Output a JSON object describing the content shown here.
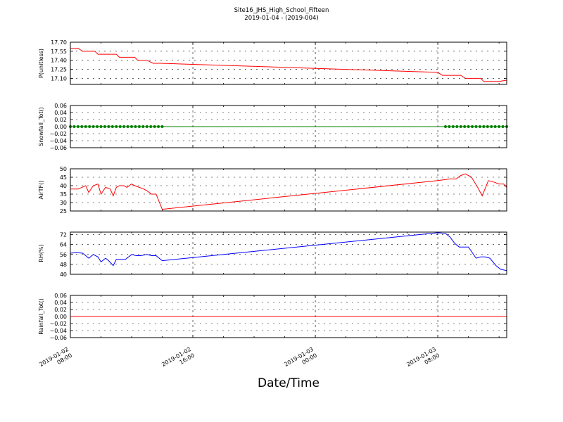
{
  "title": "Site16_JHS_High_School_Fifteen",
  "subtitle": "2019-01-04 - (2019-004)",
  "xlabel": "Date/Time",
  "x_ticks": [
    {
      "t": 0,
      "line1": "2019-01-02",
      "line2": "08:00"
    },
    {
      "t": 8,
      "line1": "2019-01-02",
      "line2": "16:00"
    },
    {
      "t": 16,
      "line1": "2019-01-03",
      "line2": "00:00"
    },
    {
      "t": 24,
      "line1": "2019-01-03",
      "line2": "08:00"
    }
  ],
  "colors": {
    "pressure": "#ff0000",
    "snowfall": "#008000",
    "airtemp": "#ff0000",
    "rh": "#0000ff",
    "rainfall": "#ff0000",
    "grid": "#000000"
  },
  "chart_data": [
    {
      "type": "line",
      "ylabel": "P(unitless)",
      "ylim": [
        17.0,
        17.7
      ],
      "y_ticks": [
        "17.70",
        "17.55",
        "17.40",
        "17.25",
        "17.10"
      ],
      "y_tick_values": [
        17.7,
        17.55,
        17.4,
        17.25,
        17.1
      ],
      "grid": true,
      "colorKey": "pressure",
      "x": [
        0,
        0.5,
        0.8,
        1.0,
        1.3,
        1.6,
        1.8,
        3.0,
        3.2,
        4.2,
        4.4,
        5.0,
        5.4,
        5.9,
        24.0,
        24.3,
        25.5,
        25.8,
        26.8,
        27.0,
        28.0,
        28.5
      ],
      "y": [
        17.6,
        17.6,
        17.55,
        17.55,
        17.55,
        17.55,
        17.5,
        17.5,
        17.45,
        17.45,
        17.4,
        17.4,
        17.35,
        17.35,
        17.2,
        17.15,
        17.15,
        17.1,
        17.1,
        17.05,
        17.05,
        17.07
      ]
    },
    {
      "type": "scatter",
      "ylabel": "Snowfall_Tot()",
      "ylim": [
        -0.06,
        0.06
      ],
      "y_ticks": [
        "0.06",
        "0.04",
        "0.02",
        "0.00",
        "−0.02",
        "−0.04",
        "−0.06"
      ],
      "y_tick_values": [
        0.06,
        0.04,
        0.02,
        0,
        -0.02,
        -0.04,
        -0.06
      ],
      "grid": true,
      "colorKey": "snowfall",
      "segments": [
        [
          0,
          6.0
        ],
        [
          24.5,
          28.5
        ]
      ],
      "step": 0.25,
      "value": 0
    },
    {
      "type": "line",
      "ylabel": "AirTF()",
      "ylim": [
        25,
        50
      ],
      "y_ticks": [
        "50",
        "45",
        "40",
        "35",
        "30",
        "25"
      ],
      "y_tick_values": [
        50,
        45,
        40,
        35,
        30,
        25
      ],
      "grid": true,
      "colorKey": "airtemp",
      "x": [
        0,
        0.5,
        1.0,
        1.2,
        1.5,
        1.8,
        2.0,
        2.3,
        2.6,
        2.8,
        3.0,
        3.2,
        3.5,
        3.7,
        4.0,
        4.2,
        4.5,
        4.8,
        5.0,
        5.3,
        5.6,
        6.0,
        24.0,
        24.8,
        25.2,
        25.5,
        25.8,
        26.2,
        26.6,
        26.9,
        27.3,
        27.7,
        28.0,
        28.3,
        28.5
      ],
      "y": [
        38,
        38,
        40,
        36,
        40,
        41,
        35,
        39,
        38,
        34,
        39,
        40,
        40,
        39,
        41,
        40,
        39,
        38,
        37,
        35,
        35,
        26,
        43,
        44,
        44,
        46,
        47,
        45,
        39,
        34,
        43,
        42,
        41,
        41,
        39
      ]
    },
    {
      "type": "line",
      "ylabel": "RH(%)",
      "ylim": [
        40,
        74
      ],
      "y_ticks": [
        "72",
        "64",
        "56",
        "48",
        "40"
      ],
      "y_tick_values": [
        72,
        64,
        56,
        48,
        40
      ],
      "grid": true,
      "colorKey": "rh",
      "x": [
        0,
        0.4,
        0.8,
        1.0,
        1.2,
        1.5,
        1.8,
        2.0,
        2.3,
        2.5,
        2.8,
        3.0,
        3.2,
        3.6,
        4.0,
        4.3,
        4.6,
        5.0,
        5.3,
        5.6,
        6.0,
        24.0,
        24.5,
        24.8,
        25.1,
        25.4,
        25.7,
        26.0,
        26.5,
        26.8,
        27.1,
        27.4,
        27.8,
        28.1,
        28.5
      ],
      "y": [
        57,
        57.5,
        57,
        55,
        53,
        56,
        54,
        50,
        53,
        51,
        47,
        52,
        52,
        52,
        56,
        55,
        55,
        56,
        55,
        55,
        51,
        73.5,
        73,
        70,
        65,
        62,
        62,
        62,
        53,
        54,
        54,
        53,
        47,
        44,
        43
      ]
    },
    {
      "type": "line",
      "ylabel": "Rainfall_Tot()",
      "ylim": [
        -0.06,
        0.06
      ],
      "y_ticks": [
        "0.06",
        "0.04",
        "0.02",
        "0.00",
        "−0.02",
        "−0.04",
        "−0.06"
      ],
      "y_tick_values": [
        0.06,
        0.04,
        0.02,
        0,
        -0.02,
        -0.04,
        -0.06
      ],
      "grid": true,
      "colorKey": "rainfall",
      "x": [
        0,
        28.5
      ],
      "y": [
        0,
        0
      ]
    }
  ]
}
